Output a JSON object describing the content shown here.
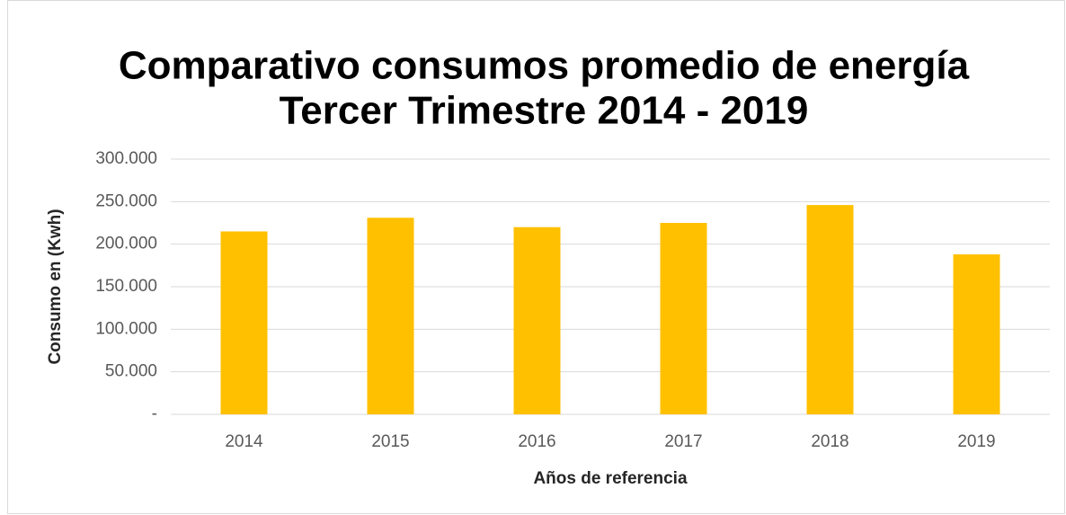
{
  "chart_data": {
    "type": "bar",
    "title": [
      "Comparativo consumos promedio de energía",
      "Tercer Trimestre 2014 - 2019"
    ],
    "x_label": "Años de referencia",
    "y_label": "Consumo en (Kwh)",
    "categories": [
      "2014",
      "2015",
      "2016",
      "2017",
      "2018",
      "2019"
    ],
    "values": [
      215000,
      231000,
      220000,
      225000,
      246000,
      188000
    ],
    "color": "#ffc000",
    "ylim": [
      0,
      300000
    ],
    "yticks": [
      {
        "value": 0,
        "label": "-"
      },
      {
        "value": 50000,
        "label": "50.000"
      },
      {
        "value": 100000,
        "label": "100.000"
      },
      {
        "value": 150000,
        "label": "150.000"
      },
      {
        "value": 200000,
        "label": "200.000"
      },
      {
        "value": 250000,
        "label": "250.000"
      },
      {
        "value": 300000,
        "label": "300.000"
      }
    ],
    "grid": true
  }
}
